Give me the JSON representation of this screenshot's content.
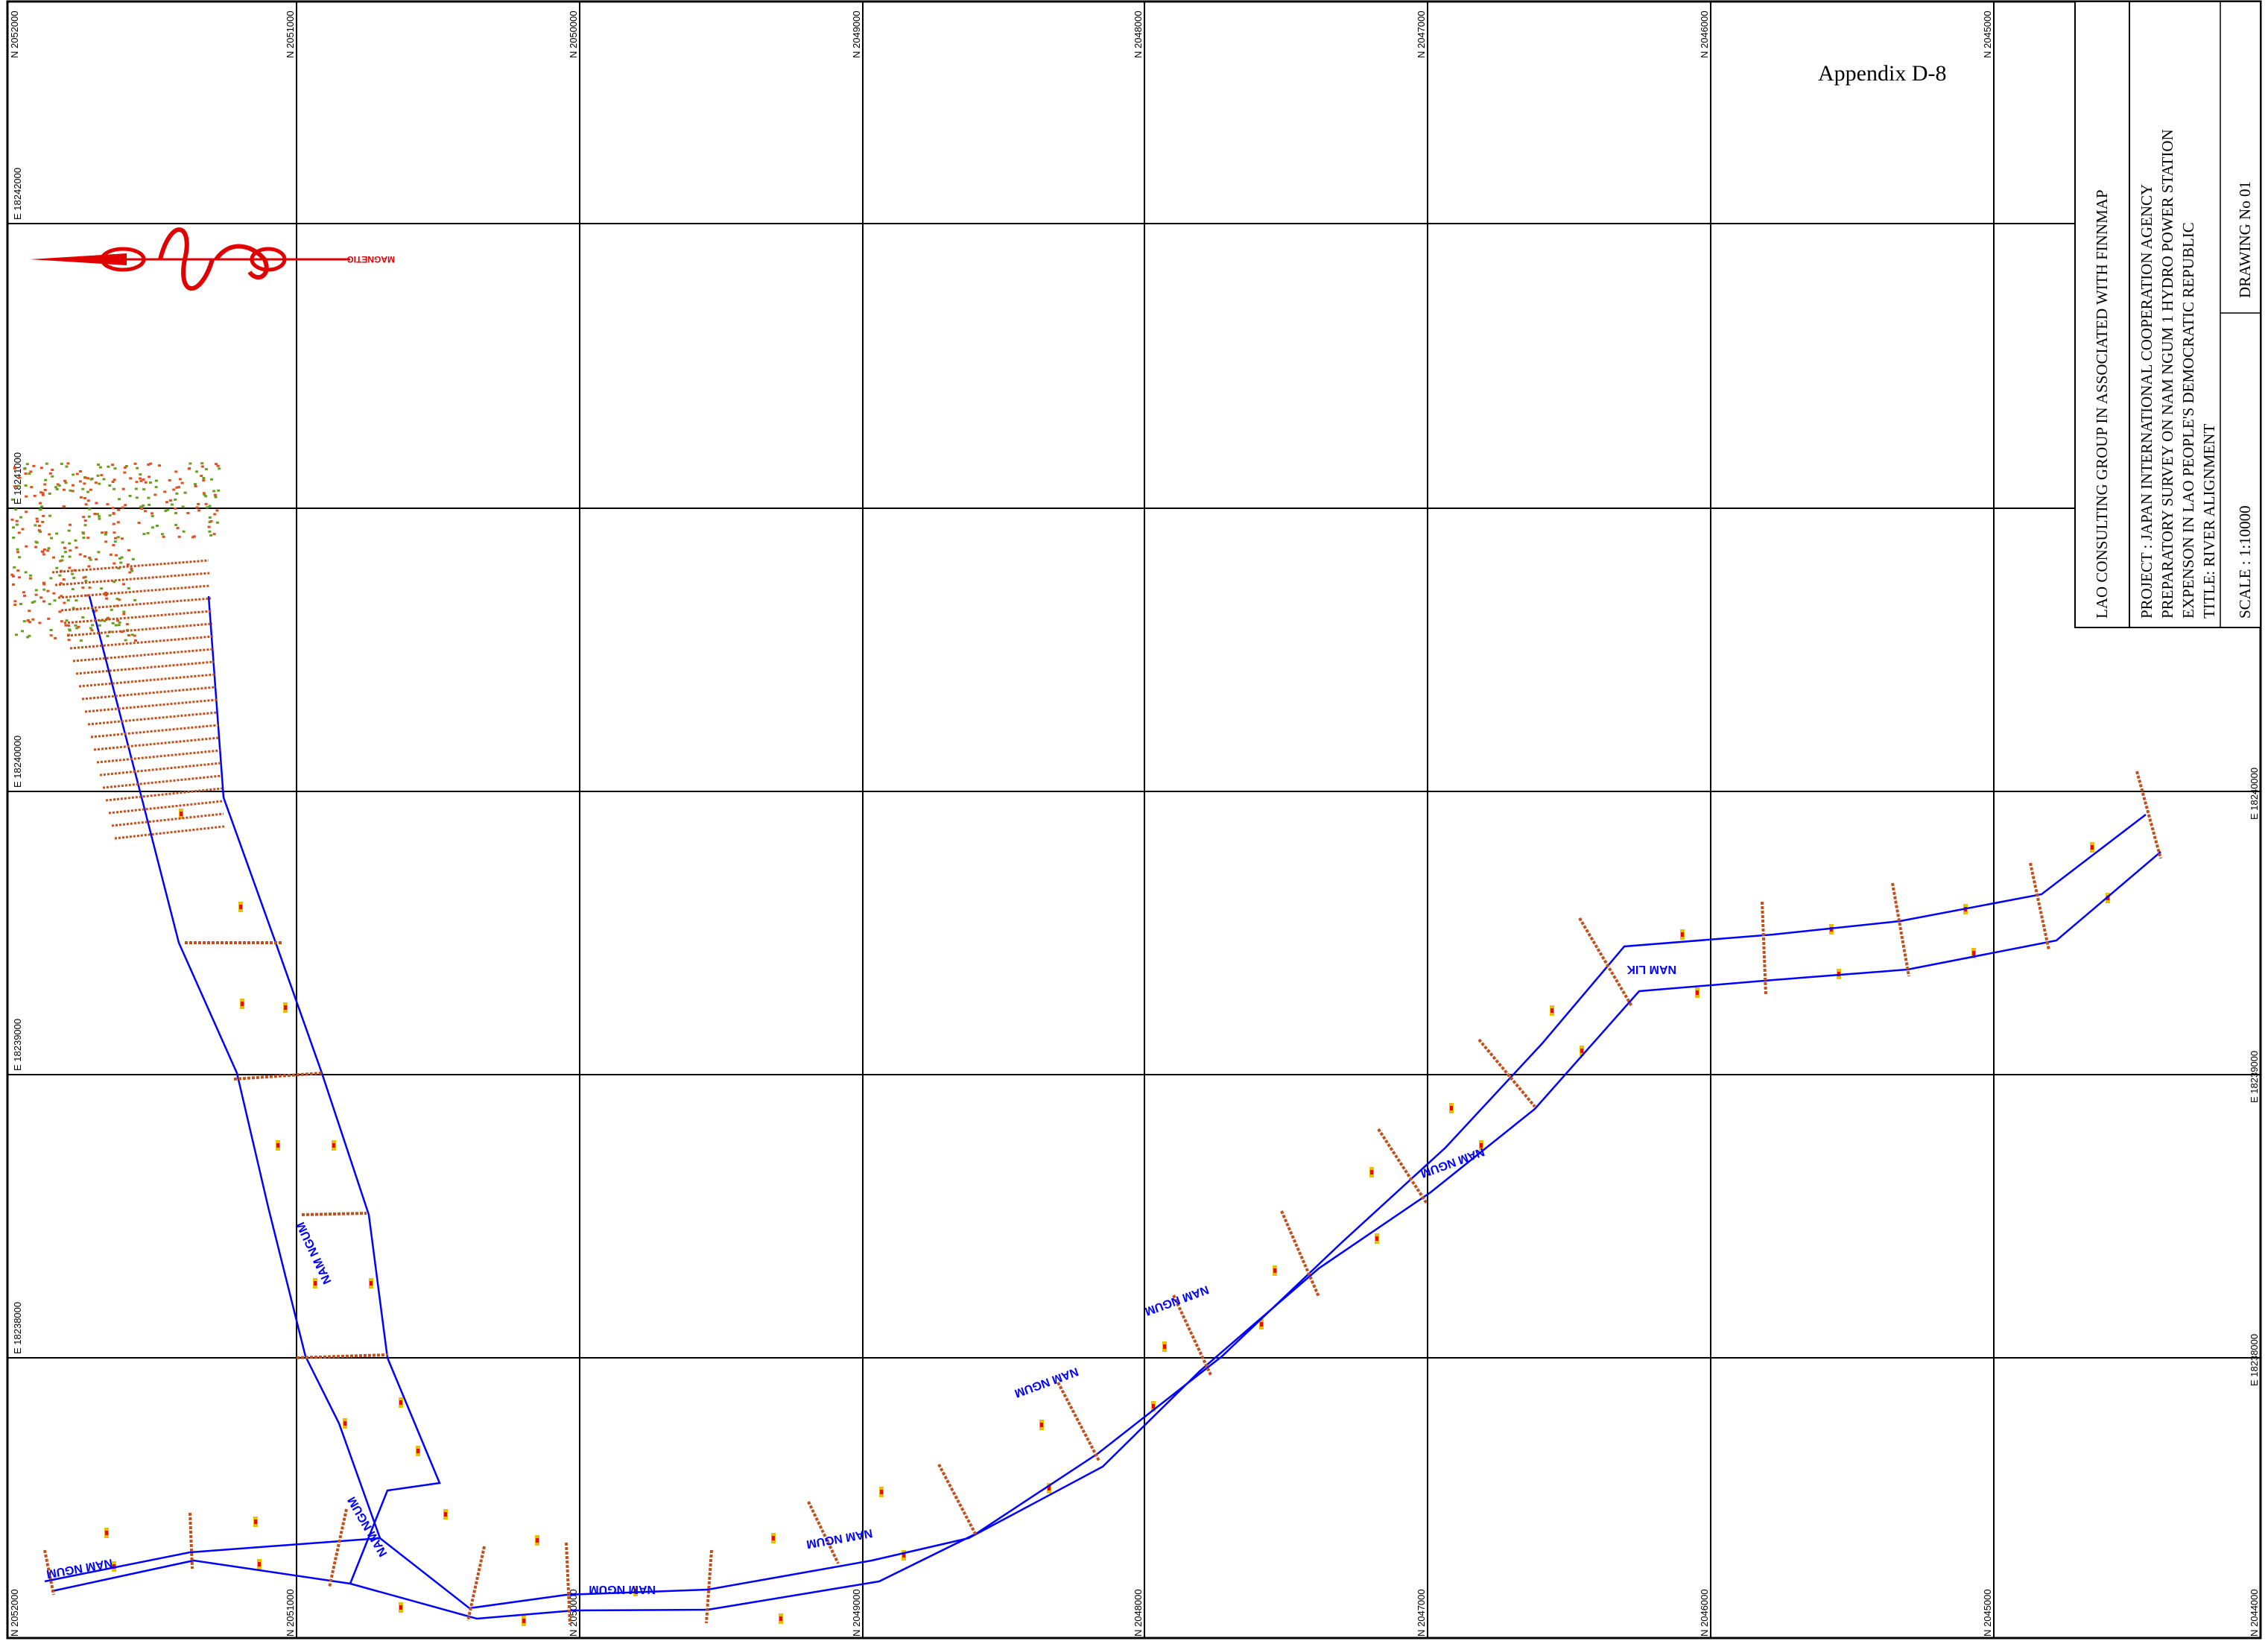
{
  "appendix": "Appendix D-8",
  "title_block": {
    "company": "LAO CONSULTING GROUP IN ASSOCIATED WITH FINNMAP",
    "project": "PROJECT : JAPAN INTERNATIONAL COOPERATION AGENCY",
    "survey": "PREPARATORY SURVEY ON NAM NGUM 1 HYDRO POWER STATION",
    "country": "EXPENSON IN LAO PEOPLE'S DEMOCRATIC REPUBLIC",
    "title": "TITLE: RIVER ALIGNMENT",
    "drawing": "DRAWING No 01",
    "scale": "SCALE : 1:10000"
  },
  "north_arrow": {
    "label": "MAGNETIC"
  },
  "grid": {
    "north_top": [
      "N 2052000",
      "N 2051000",
      "N 2050000",
      "N 2049000",
      "N 2048000",
      "N 2047000",
      "N 2046000",
      "N 2045000"
    ],
    "north_bottom": [
      "N 2052000",
      "N 2051000",
      "N 2050000",
      "N 2049000",
      "N 2048000",
      "N 2047000",
      "N 2046000",
      "N 2045000",
      "N 2044000"
    ],
    "east_left": [
      "E 18242000",
      "E 18241000",
      "E 18240000",
      "E 18239000",
      "E 18238000"
    ],
    "east_right": [
      "E 18240000",
      "E 18239000",
      "E 18238000"
    ]
  },
  "river_labels": [
    "NAM NGUM",
    "NAM NGUM",
    "NAM NGUM",
    "NAM LIK",
    "NAM NGUM",
    "NAM NGUM",
    "NAM NGUM",
    "NAM NGUM",
    "NAM NGUM"
  ],
  "colors": {
    "river": "#0000ff",
    "section": "#c0501c",
    "marker": "#ff0000",
    "grid": "#000000"
  }
}
